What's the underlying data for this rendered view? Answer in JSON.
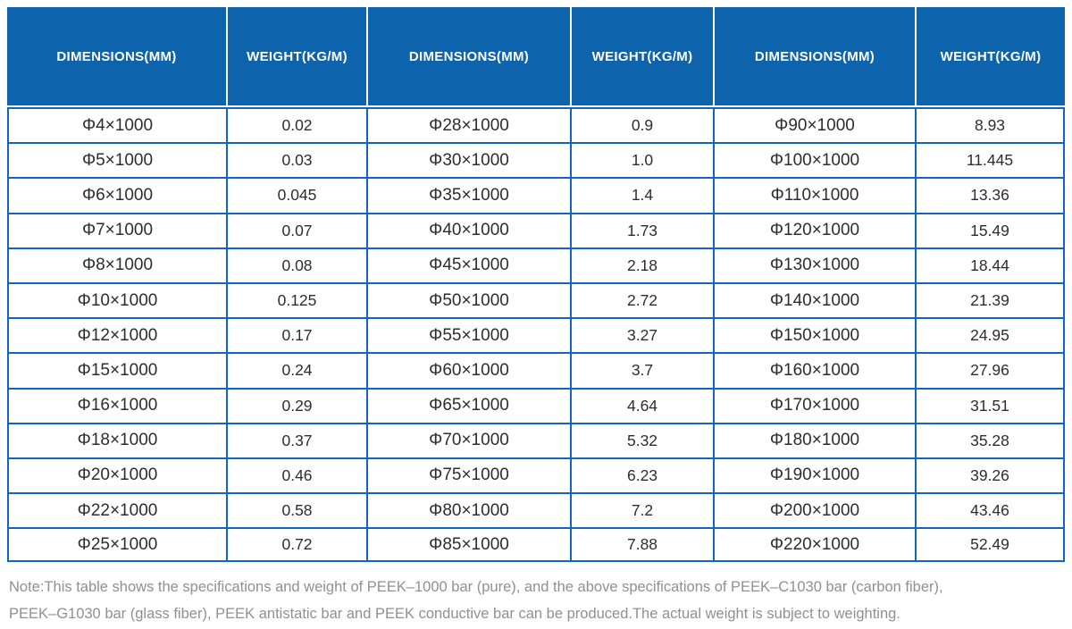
{
  "colors": {
    "header_bg": "#0d64ac",
    "header_text": "#ffffff",
    "grid_border": "#0f66c0",
    "cell_text": "#2d2d2d",
    "note_text": "#8f9092",
    "background": "#ffffff"
  },
  "table": {
    "column_headers": [
      "DIMENSIONS(MM)",
      "WEIGHT(KG/M)",
      "DIMENSIONS(MM)",
      "WEIGHT(KG/M)",
      "DIMENSIONS(MM)",
      "WEIGHT(KG/M)"
    ],
    "rows": [
      [
        "Φ4×1000",
        "0.02",
        "Φ28×1000",
        "0.9",
        "Φ90×1000",
        "8.93"
      ],
      [
        "Φ5×1000",
        "0.03",
        "Φ30×1000",
        "1.0",
        "Φ100×1000",
        "11.445"
      ],
      [
        "Φ6×1000",
        "0.045",
        "Φ35×1000",
        "1.4",
        "Φ110×1000",
        "13.36"
      ],
      [
        "Φ7×1000",
        "0.07",
        "Φ40×1000",
        "1.73",
        "Φ120×1000",
        "15.49"
      ],
      [
        "Φ8×1000",
        "0.08",
        "Φ45×1000",
        "2.18",
        "Φ130×1000",
        "18.44"
      ],
      [
        "Φ10×1000",
        "0.125",
        "Φ50×1000",
        "2.72",
        "Φ140×1000",
        "21.39"
      ],
      [
        "Φ12×1000",
        "0.17",
        "Φ55×1000",
        "3.27",
        "Φ150×1000",
        "24.95"
      ],
      [
        "Φ15×1000",
        "0.24",
        "Φ60×1000",
        "3.7",
        "Φ160×1000",
        "27.96"
      ],
      [
        "Φ16×1000",
        "0.29",
        "Φ65×1000",
        "4.64",
        "Φ170×1000",
        "31.51"
      ],
      [
        "Φ18×1000",
        "0.37",
        "Φ70×1000",
        "5.32",
        "Φ180×1000",
        "35.28"
      ],
      [
        "Φ20×1000",
        "0.46",
        "Φ75×1000",
        "6.23",
        "Φ190×1000",
        "39.26"
      ],
      [
        "Φ22×1000",
        "0.58",
        "Φ80×1000",
        "7.2",
        "Φ200×1000",
        "43.46"
      ],
      [
        "Φ25×1000",
        "0.72",
        "Φ85×1000",
        "7.88",
        "Φ220×1000",
        "52.49"
      ]
    ]
  },
  "note": {
    "lines": [
      "Note:This table shows the specifications and weight of PEEK–1000 bar (pure), and the above specifications of PEEK–C1030 bar (carbon fiber),",
      "PEEK–G1030 bar (glass fiber), PEEK antistatic bar and PEEK conductive bar can be produced.The actual weight is subject to weighting."
    ]
  }
}
